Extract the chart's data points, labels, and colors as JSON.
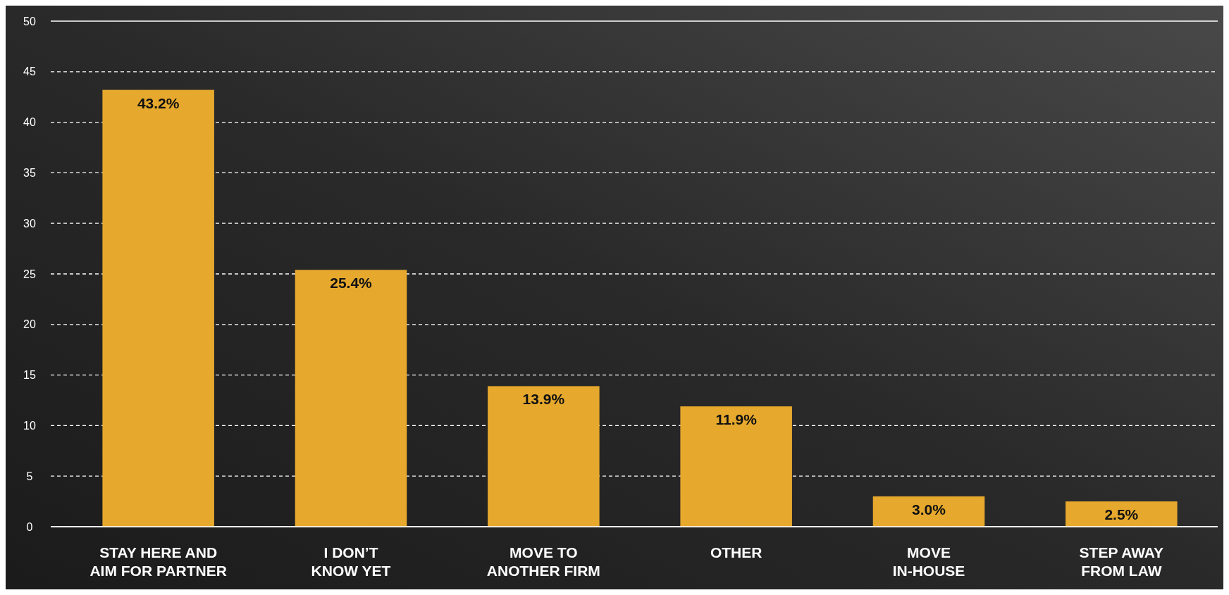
{
  "chart_data": {
    "type": "bar",
    "categories": [
      "STAY HERE AND\nAIM FOR PARTNER",
      "I DON’T\nKNOW YET",
      "MOVE TO\nANOTHER FIRM",
      "OTHER",
      "MOVE\nIN-HOUSE",
      "STEP AWAY\nFROM LAW"
    ],
    "values": [
      43.2,
      25.4,
      13.9,
      11.9,
      3.0,
      2.5
    ],
    "value_labels": [
      "43.2%",
      "25.4%",
      "13.9%",
      "11.9%",
      "3.0%",
      "2.5%"
    ],
    "color": "#e6a92d",
    "ylim": [
      0,
      50
    ],
    "yticks": [
      0,
      5,
      10,
      15,
      20,
      25,
      30,
      35,
      40,
      45,
      50
    ],
    "grid": "y"
  }
}
